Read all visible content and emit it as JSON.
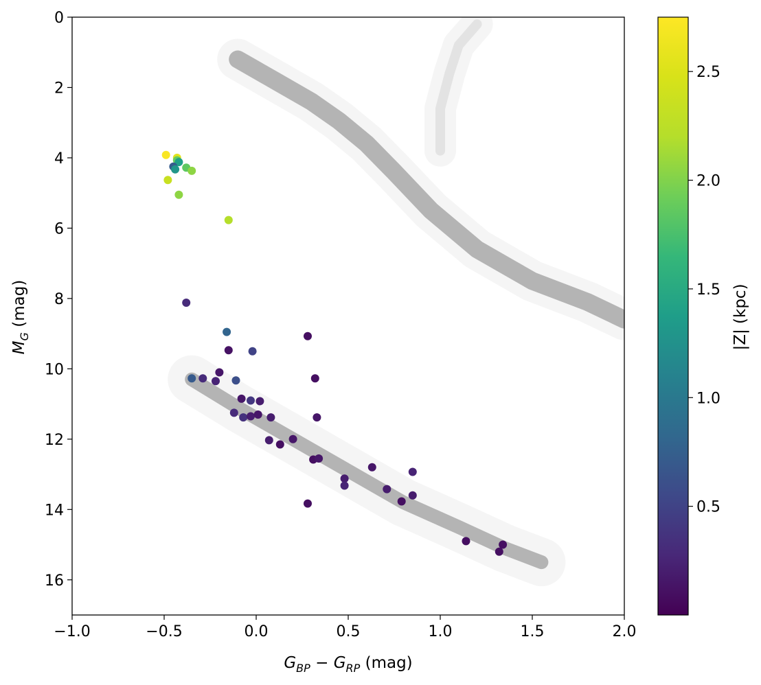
{
  "chart_data": {
    "type": "scatter",
    "title": "",
    "xlabel": "G_BP − G_RP (mag)",
    "xlabel_parts": {
      "a": "G",
      "a_sub": "BP",
      "minus": " − ",
      "b": "G",
      "b_sub": "RP",
      "unit": " (mag)"
    },
    "ylabel": "M_G (mag)",
    "ylabel_parts": {
      "main": "M",
      "sub": "G",
      "unit": " (mag)"
    },
    "xlim": [
      -1.0,
      2.0
    ],
    "ylim": [
      17,
      0
    ],
    "y_inverted": true,
    "xticks": [
      -1.0,
      -0.5,
      0.0,
      0.5,
      1.0,
      1.5,
      2.0
    ],
    "xtick_labels": [
      "−1.0",
      "−0.5",
      "0.0",
      "0.5",
      "1.0",
      "1.5",
      "2.0"
    ],
    "yticks": [
      0,
      2,
      4,
      6,
      8,
      10,
      12,
      14,
      16
    ],
    "ytick_labels": [
      "0",
      "2",
      "4",
      "6",
      "8",
      "10",
      "12",
      "14",
      "16"
    ],
    "grid": false,
    "background_color": "#b0b0b0",
    "colorbar": {
      "label": "|Z| (kpc)",
      "colormap": "viridis",
      "range": [
        0.0,
        2.75
      ],
      "ticks": [
        0.5,
        1.0,
        1.5,
        2.0,
        2.5
      ],
      "tick_labels": [
        "0.5",
        "1.0",
        "1.5",
        "2.0",
        "2.5"
      ]
    },
    "points": [
      {
        "x": -0.49,
        "y": 3.92,
        "z": 2.72
      },
      {
        "x": -0.43,
        "y": 4.0,
        "z": 2.55
      },
      {
        "x": -0.43,
        "y": 4.07,
        "z": 1.9
      },
      {
        "x": -0.42,
        "y": 4.12,
        "z": 1.4
      },
      {
        "x": -0.45,
        "y": 4.25,
        "z": 0.72
      },
      {
        "x": -0.44,
        "y": 4.33,
        "z": 1.3
      },
      {
        "x": -0.38,
        "y": 4.28,
        "z": 1.85
      },
      {
        "x": -0.35,
        "y": 4.37,
        "z": 2.05
      },
      {
        "x": -0.48,
        "y": 4.63,
        "z": 2.35
      },
      {
        "x": -0.42,
        "y": 5.05,
        "z": 2.05
      },
      {
        "x": -0.15,
        "y": 5.77,
        "z": 2.2
      },
      {
        "x": -0.38,
        "y": 8.12,
        "z": 0.3
      },
      {
        "x": -0.16,
        "y": 8.95,
        "z": 0.8
      },
      {
        "x": -0.15,
        "y": 9.47,
        "z": 0.12
      },
      {
        "x": -0.02,
        "y": 9.5,
        "z": 0.5
      },
      {
        "x": 0.28,
        "y": 9.07,
        "z": 0.1
      },
      {
        "x": -0.2,
        "y": 10.1,
        "z": 0.15
      },
      {
        "x": -0.35,
        "y": 10.27,
        "z": 0.7
      },
      {
        "x": -0.29,
        "y": 10.27,
        "z": 0.3
      },
      {
        "x": -0.22,
        "y": 10.35,
        "z": 0.25
      },
      {
        "x": -0.11,
        "y": 10.33,
        "z": 0.6
      },
      {
        "x": 0.32,
        "y": 10.27,
        "z": 0.1
      },
      {
        "x": -0.08,
        "y": 10.85,
        "z": 0.15
      },
      {
        "x": -0.03,
        "y": 10.9,
        "z": 0.4
      },
      {
        "x": 0.02,
        "y": 10.92,
        "z": 0.2
      },
      {
        "x": -0.12,
        "y": 11.25,
        "z": 0.3
      },
      {
        "x": -0.07,
        "y": 11.38,
        "z": 0.35
      },
      {
        "x": -0.03,
        "y": 11.35,
        "z": 0.2
      },
      {
        "x": 0.01,
        "y": 11.3,
        "z": 0.15
      },
      {
        "x": 0.08,
        "y": 11.38,
        "z": 0.2
      },
      {
        "x": 0.33,
        "y": 11.38,
        "z": 0.15
      },
      {
        "x": 0.07,
        "y": 12.03,
        "z": 0.2
      },
      {
        "x": 0.13,
        "y": 12.15,
        "z": 0.1
      },
      {
        "x": 0.2,
        "y": 12.0,
        "z": 0.15
      },
      {
        "x": 0.31,
        "y": 12.58,
        "z": 0.1
      },
      {
        "x": 0.34,
        "y": 12.55,
        "z": 0.15
      },
      {
        "x": 0.48,
        "y": 13.12,
        "z": 0.2
      },
      {
        "x": 0.48,
        "y": 13.32,
        "z": 0.25
      },
      {
        "x": 0.63,
        "y": 12.8,
        "z": 0.15
      },
      {
        "x": 0.71,
        "y": 13.42,
        "z": 0.2
      },
      {
        "x": 0.79,
        "y": 13.77,
        "z": 0.1
      },
      {
        "x": 0.85,
        "y": 12.93,
        "z": 0.25
      },
      {
        "x": 0.85,
        "y": 13.6,
        "z": 0.2
      },
      {
        "x": 0.28,
        "y": 13.83,
        "z": 0.1
      },
      {
        "x": 1.14,
        "y": 14.9,
        "z": 0.1
      },
      {
        "x": 1.32,
        "y": 15.2,
        "z": 0.1
      },
      {
        "x": 1.34,
        "y": 15.0,
        "z": 0.1
      }
    ],
    "background_sequences": {
      "upper_main_sequence": [
        [
          -0.1,
          1.2
        ],
        [
          0.1,
          1.8
        ],
        [
          0.3,
          2.4
        ],
        [
          0.45,
          2.95
        ],
        [
          0.6,
          3.6
        ],
        [
          0.75,
          4.4
        ],
        [
          0.95,
          5.5
        ],
        [
          1.2,
          6.6
        ],
        [
          1.5,
          7.5
        ],
        [
          1.8,
          8.1
        ],
        [
          2.0,
          8.6
        ]
      ],
      "giant_branch": [
        [
          1.0,
          3.8
        ],
        [
          1.0,
          2.6
        ],
        [
          1.05,
          1.6
        ],
        [
          1.1,
          0.8
        ],
        [
          1.2,
          0.2
        ]
      ],
      "white_dwarf_sequence": [
        [
          -0.35,
          10.3
        ],
        [
          -0.1,
          11.1
        ],
        [
          0.2,
          12.0
        ],
        [
          0.5,
          12.9
        ],
        [
          0.8,
          13.8
        ],
        [
          1.1,
          14.5
        ],
        [
          1.35,
          15.1
        ],
        [
          1.55,
          15.5
        ]
      ]
    }
  }
}
